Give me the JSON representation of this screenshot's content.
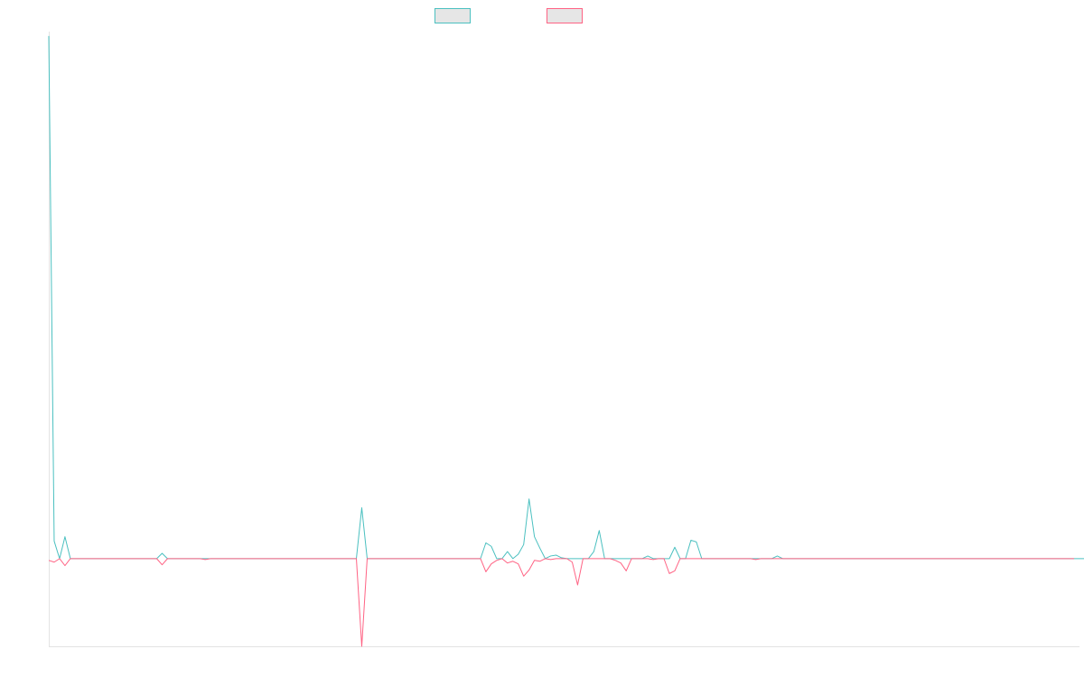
{
  "chart_data": {
    "type": "line",
    "title": "",
    "xlabel": "",
    "ylabel": "",
    "grid": false,
    "legend_placement": "top-center",
    "x_count": 192,
    "ylim": [
      -100,
      600
    ],
    "series": [
      {
        "color": "#4bc0c0",
        "fill": "#e6e6e6",
        "values": [
          596,
          20,
          0,
          25,
          0,
          0,
          0,
          0,
          0,
          0,
          0,
          0,
          0,
          0,
          0,
          0,
          0,
          0,
          0,
          0,
          0,
          6,
          0,
          0,
          0,
          0,
          0,
          0,
          0,
          0,
          0,
          0,
          0,
          0,
          0,
          0,
          0,
          0,
          0,
          0,
          0,
          0,
          0,
          0,
          0,
          0,
          0,
          0,
          0,
          0,
          0,
          0,
          0,
          0,
          0,
          0,
          0,
          0,
          58,
          0,
          0,
          0,
          0,
          0,
          0,
          0,
          0,
          0,
          0,
          0,
          0,
          0,
          0,
          0,
          0,
          0,
          0,
          0,
          0,
          0,
          0,
          18,
          14,
          0,
          0,
          8,
          0,
          5,
          16,
          68,
          25,
          12,
          0,
          3,
          4,
          1,
          0,
          0,
          0,
          0,
          0,
          8,
          32,
          0,
          0,
          0,
          0,
          0,
          0,
          0,
          0,
          3,
          0,
          0,
          0,
          0,
          13,
          0,
          0,
          21,
          19,
          0,
          0,
          0,
          0,
          0,
          0,
          0,
          0,
          0,
          0,
          0,
          0,
          0,
          0,
          3,
          0,
          0,
          0,
          0,
          0,
          0,
          0,
          0,
          0,
          0,
          0,
          0,
          0,
          0,
          0,
          0,
          0,
          0,
          0,
          0,
          0,
          0,
          0,
          0,
          0,
          0,
          0,
          0,
          0,
          0,
          0,
          0,
          0,
          0,
          0,
          0,
          0,
          0,
          0,
          0,
          0,
          0,
          0,
          0,
          0,
          0,
          0,
          0,
          0,
          0,
          0,
          0,
          0,
          0,
          0,
          0,
          0
        ]
      },
      {
        "color": "#ff6384",
        "fill": "#e6e6e6",
        "values": [
          -2,
          -4,
          0,
          -8,
          0,
          0,
          0,
          0,
          0,
          0,
          0,
          0,
          0,
          0,
          0,
          0,
          0,
          0,
          0,
          0,
          0,
          -7,
          0,
          0,
          0,
          0,
          0,
          0,
          0,
          -1,
          0,
          0,
          0,
          0,
          0,
          0,
          0,
          0,
          0,
          0,
          0,
          0,
          0,
          0,
          0,
          0,
          0,
          0,
          0,
          0,
          0,
          0,
          0,
          0,
          0,
          0,
          0,
          0,
          -100,
          0,
          0,
          0,
          0,
          0,
          0,
          0,
          0,
          0,
          0,
          0,
          0,
          0,
          0,
          0,
          0,
          0,
          0,
          0,
          0,
          0,
          0,
          -15,
          -6,
          -2,
          0,
          -5,
          -3,
          -6,
          -20,
          -13,
          -2,
          -3,
          0,
          -1,
          0,
          0,
          0,
          -4,
          -30,
          0,
          0,
          0,
          0,
          0,
          0,
          -2,
          -5,
          -14,
          0,
          0,
          0,
          0,
          -1,
          0,
          0,
          -17,
          -14,
          0,
          0,
          0,
          0,
          0,
          0,
          0,
          0,
          0,
          0,
          0,
          0,
          0,
          0,
          -1,
          0,
          0,
          0,
          0,
          0,
          0,
          0,
          0,
          0,
          0,
          0,
          0,
          0,
          0,
          0,
          0,
          0,
          0,
          0,
          0,
          0,
          0,
          0,
          0,
          0,
          0,
          0,
          0,
          0,
          0,
          0,
          0,
          0,
          0,
          0,
          0,
          0,
          0,
          0,
          0,
          0,
          0,
          0,
          0,
          0,
          0,
          0,
          0,
          0,
          0,
          0,
          0,
          0,
          0,
          0,
          0,
          0,
          0,
          0
        ]
      }
    ]
  }
}
